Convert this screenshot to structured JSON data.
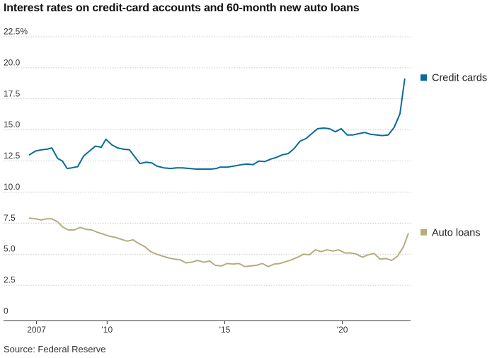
{
  "chart_data": {
    "type": "line",
    "title": "Interest rates on credit-card accounts and 60-month new auto loans",
    "source": "Source: Federal Reserve",
    "xlabel": "",
    "ylabel": "",
    "ylim": [
      0,
      22.5
    ],
    "xlim": [
      2006.5,
      2022.9
    ],
    "y_ticks": [
      0,
      2.5,
      5.0,
      7.5,
      10.0,
      12.5,
      15.0,
      17.5,
      20.0,
      22.5
    ],
    "y_tick_labels": [
      "0",
      "2.5",
      "5.0",
      "7.5",
      "10.0",
      "12.5",
      "15.0",
      "17.5",
      "20.0",
      "22.5%"
    ],
    "x_tick_labels": [
      {
        "x": 2007,
        "label": "2007"
      },
      {
        "x": 2010,
        "label": "'10"
      },
      {
        "x": 2015,
        "label": "'15"
      },
      {
        "x": 2020,
        "label": "'20"
      }
    ],
    "grid": "horizontal",
    "legend": "right, next to line ends",
    "series": [
      {
        "name": "Credit cards",
        "color": "#0b6a9c",
        "points": [
          [
            2006.7,
            13.0
          ],
          [
            2006.95,
            13.3
          ],
          [
            2007.2,
            13.4
          ],
          [
            2007.45,
            13.45
          ],
          [
            2007.65,
            13.55
          ],
          [
            2007.9,
            12.7
          ],
          [
            2008.1,
            12.5
          ],
          [
            2008.3,
            11.9
          ],
          [
            2008.5,
            11.95
          ],
          [
            2008.75,
            12.05
          ],
          [
            2009.0,
            12.9
          ],
          [
            2009.25,
            13.3
          ],
          [
            2009.5,
            13.7
          ],
          [
            2009.75,
            13.6
          ],
          [
            2009.95,
            14.25
          ],
          [
            2010.2,
            13.8
          ],
          [
            2010.45,
            13.55
          ],
          [
            2010.7,
            13.45
          ],
          [
            2010.95,
            13.4
          ],
          [
            2011.15,
            12.9
          ],
          [
            2011.4,
            12.3
          ],
          [
            2011.65,
            12.4
          ],
          [
            2011.9,
            12.35
          ],
          [
            2012.1,
            12.1
          ],
          [
            2012.4,
            11.95
          ],
          [
            2012.7,
            11.9
          ],
          [
            2012.95,
            11.95
          ],
          [
            2013.2,
            11.95
          ],
          [
            2013.5,
            11.9
          ],
          [
            2013.8,
            11.85
          ],
          [
            2014.1,
            11.85
          ],
          [
            2014.4,
            11.85
          ],
          [
            2014.65,
            11.9
          ],
          [
            2014.8,
            12.0
          ],
          [
            2015.1,
            12.0
          ],
          [
            2015.4,
            12.1
          ],
          [
            2015.7,
            12.2
          ],
          [
            2015.95,
            12.25
          ],
          [
            2016.2,
            12.2
          ],
          [
            2016.45,
            12.5
          ],
          [
            2016.7,
            12.45
          ],
          [
            2016.95,
            12.65
          ],
          [
            2017.2,
            12.8
          ],
          [
            2017.45,
            13.0
          ],
          [
            2017.7,
            13.1
          ],
          [
            2017.95,
            13.5
          ],
          [
            2018.2,
            14.1
          ],
          [
            2018.45,
            14.3
          ],
          [
            2018.7,
            14.7
          ],
          [
            2018.95,
            15.1
          ],
          [
            2019.2,
            15.15
          ],
          [
            2019.45,
            15.1
          ],
          [
            2019.7,
            14.85
          ],
          [
            2019.95,
            15.1
          ],
          [
            2020.2,
            14.6
          ],
          [
            2020.45,
            14.6
          ],
          [
            2020.7,
            14.7
          ],
          [
            2020.95,
            14.8
          ],
          [
            2021.2,
            14.65
          ],
          [
            2021.45,
            14.6
          ],
          [
            2021.7,
            14.55
          ],
          [
            2021.95,
            14.6
          ],
          [
            2022.2,
            15.2
          ],
          [
            2022.45,
            16.3
          ],
          [
            2022.65,
            19.1
          ]
        ]
      },
      {
        "name": "Auto loans",
        "color": "#b5ad7d",
        "points": [
          [
            2006.7,
            7.9
          ],
          [
            2006.95,
            7.85
          ],
          [
            2007.2,
            7.75
          ],
          [
            2007.45,
            7.85
          ],
          [
            2007.65,
            7.85
          ],
          [
            2007.9,
            7.6
          ],
          [
            2008.1,
            7.2
          ],
          [
            2008.35,
            6.95
          ],
          [
            2008.6,
            6.95
          ],
          [
            2008.85,
            7.15
          ],
          [
            2009.1,
            7.0
          ],
          [
            2009.35,
            6.95
          ],
          [
            2009.6,
            6.75
          ],
          [
            2009.85,
            6.6
          ],
          [
            2010.1,
            6.45
          ],
          [
            2010.35,
            6.35
          ],
          [
            2010.6,
            6.2
          ],
          [
            2010.85,
            6.05
          ],
          [
            2011.1,
            6.15
          ],
          [
            2011.35,
            5.85
          ],
          [
            2011.6,
            5.6
          ],
          [
            2011.85,
            5.2
          ],
          [
            2012.1,
            5.0
          ],
          [
            2012.35,
            4.85
          ],
          [
            2012.6,
            4.7
          ],
          [
            2012.85,
            4.6
          ],
          [
            2013.1,
            4.55
          ],
          [
            2013.35,
            4.3
          ],
          [
            2013.6,
            4.35
          ],
          [
            2013.85,
            4.5
          ],
          [
            2014.1,
            4.35
          ],
          [
            2014.35,
            4.45
          ],
          [
            2014.6,
            4.1
          ],
          [
            2014.85,
            4.05
          ],
          [
            2015.1,
            4.25
          ],
          [
            2015.35,
            4.2
          ],
          [
            2015.6,
            4.25
          ],
          [
            2015.85,
            4.0
          ],
          [
            2016.1,
            4.05
          ],
          [
            2016.35,
            4.1
          ],
          [
            2016.6,
            4.25
          ],
          [
            2016.85,
            4.0
          ],
          [
            2017.1,
            4.2
          ],
          [
            2017.35,
            4.25
          ],
          [
            2017.6,
            4.4
          ],
          [
            2017.85,
            4.55
          ],
          [
            2018.1,
            4.75
          ],
          [
            2018.35,
            5.0
          ],
          [
            2018.6,
            4.95
          ],
          [
            2018.85,
            5.35
          ],
          [
            2019.1,
            5.2
          ],
          [
            2019.35,
            5.35
          ],
          [
            2019.6,
            5.25
          ],
          [
            2019.85,
            5.35
          ],
          [
            2020.1,
            5.1
          ],
          [
            2020.35,
            5.1
          ],
          [
            2020.6,
            5.0
          ],
          [
            2020.85,
            4.75
          ],
          [
            2021.1,
            4.95
          ],
          [
            2021.35,
            5.05
          ],
          [
            2021.6,
            4.6
          ],
          [
            2021.85,
            4.65
          ],
          [
            2022.1,
            4.5
          ],
          [
            2022.35,
            4.85
          ],
          [
            2022.6,
            5.6
          ],
          [
            2022.8,
            6.65
          ]
        ]
      }
    ]
  }
}
